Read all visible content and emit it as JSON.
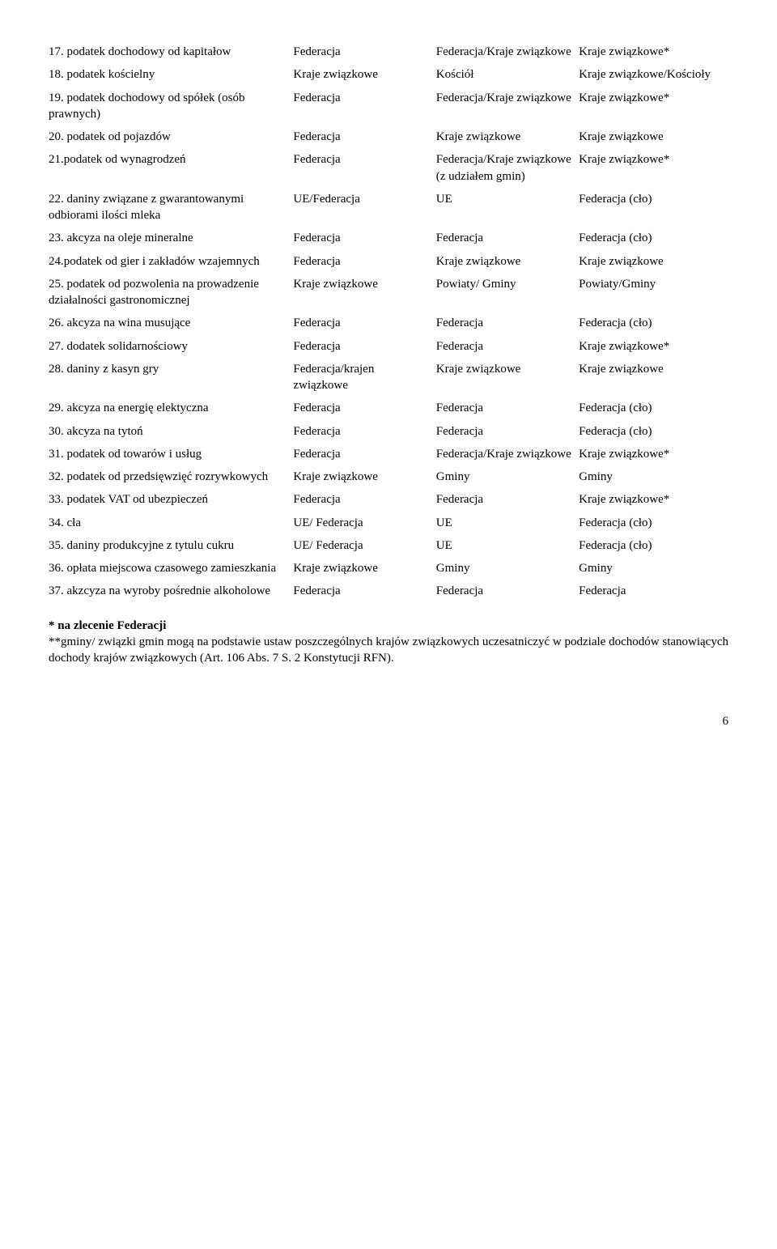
{
  "rows": [
    {
      "c1": "17. podatek dochodowy od kapitałow",
      "c2": "Federacja",
      "c3": "Federacja/Kraje związkowe",
      "c4": "Kraje związkowe*"
    },
    {
      "c1": "18. podatek kościelny",
      "c2": "Kraje związkowe",
      "c3": "Kościół",
      "c4": "Kraje związkowe/Kościoły"
    },
    {
      "c1": "19. podatek dochodowy od spółek (osób prawnych)",
      "c2": "Federacja",
      "c3": "Federacja/Kraje związkowe",
      "c4": "Kraje związkowe*"
    },
    {
      "c1": "20. podatek od pojazdów",
      "c2": "Federacja",
      "c3": "Kraje związkowe",
      "c4": "Kraje związkowe"
    },
    {
      "c1": "21.podatek od wynagrodzeń",
      "c2": "Federacja",
      "c3": "Federacja/Kraje związkowe (z udziałem gmin)",
      "c4": "Kraje związkowe*"
    },
    {
      "c1": "22. daniny związane z gwarantowanymi odbiorami ilości mleka",
      "c2": "UE/Federacja",
      "c3": "UE",
      "c4": "Federacja (cło)"
    },
    {
      "c1": "23. akcyza na oleje mineralne",
      "c2": "Federacja",
      "c3": "Federacja",
      "c4": "Federacja (cło)"
    },
    {
      "c1": "24.podatek od gier i zakładów wzajemnych",
      "c2": "Federacja",
      "c3": "Kraje związkowe",
      "c4": "Kraje związkowe"
    },
    {
      "c1": "25. podatek od pozwolenia na prowadzenie działalności gastronomicznej",
      "c2": "Kraje związkowe",
      "c3": "Powiaty/ Gminy",
      "c4": "Powiaty/Gminy"
    },
    {
      "c1": "26. akcyza na wina musujące",
      "c2": "Federacja",
      "c3": "Federacja",
      "c4": "Federacja (cło)"
    },
    {
      "c1": "27. dodatek solidarnościowy",
      "c2": "Federacja",
      "c3": "Federacja",
      "c4": "Kraje związkowe*"
    },
    {
      "c1": "28. daniny z kasyn gry",
      "c2": "Federacja/krajen związkowe",
      "c3": "Kraje związkowe",
      "c4": "Kraje związkowe"
    },
    {
      "c1": "29. akcyza na energię elektyczna",
      "c2": "Federacja",
      "c3": "Federacja",
      "c4": "Federacja (cło)"
    },
    {
      "c1": "30. akcyza na tytoń",
      "c2": "Federacja",
      "c3": "Federacja",
      "c4": "Federacja (cło)"
    },
    {
      "c1": "31. podatek od towarów i usług",
      "c2": "Federacja",
      "c3": "Federacja/Kraje związkowe",
      "c4": "Kraje związkowe*"
    },
    {
      "c1": "32. podatek od przedsięwzięć rozrywkowych",
      "c2": "Kraje związkowe",
      "c3": "Gminy",
      "c4": "Gminy"
    },
    {
      "c1": "33. podatek VAT od ubezpieczeń",
      "c2": "Federacja",
      "c3": "Federacja",
      "c4": "Kraje związkowe*"
    },
    {
      "c1": "34. cła",
      "c2": "UE/ Federacja",
      "c3": "UE",
      "c4": "Federacja (cło)"
    },
    {
      "c1": "35. daniny produkcyjne z tytulu cukru",
      "c2": "UE/ Federacja",
      "c3": "UE",
      "c4": "Federacja (cło)"
    },
    {
      "c1": "36. opłata miejscowa czasowego zamieszkania",
      "c2": "Kraje związkowe",
      "c3": "Gminy",
      "c4": "Gminy"
    },
    {
      "c1": "37. akzcyza na wyroby pośrednie alkoholowe",
      "c2": "Federacja",
      "c3": "Federacja",
      "c4": "Federacja"
    }
  ],
  "footnote": {
    "bold": "* na zlecenie Federacji",
    "text": "**gminy/ związki gmin mogą na podstawie ustaw poszczególnych krajów związkowych uczesatniczyć w podziale dochodów stanowiących dochody krajów związkowych (Art. 106 Abs. 7 S. 2 Konstytucji RFN)."
  },
  "page_number": "6"
}
